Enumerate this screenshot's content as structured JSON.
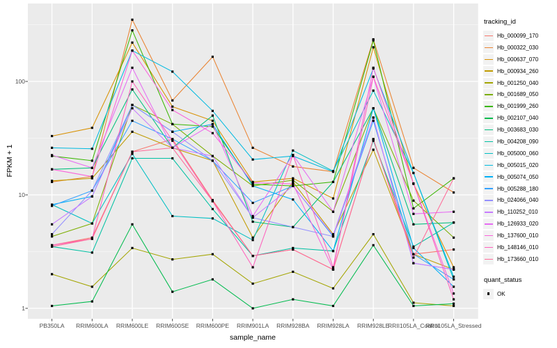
{
  "chart_data": {
    "type": "line",
    "title": "",
    "xlabel": "sample_name",
    "ylabel": "FPKM + 1",
    "y_scale": "log10",
    "y_ticks": [
      "1",
      "10",
      "100"
    ],
    "y_tick_values": [
      1,
      10,
      100
    ],
    "y_minor_values": [
      3.162,
      31.62,
      316.2
    ],
    "ylim": [
      0.8,
      490
    ],
    "grid": true,
    "legend_position": "right",
    "legend_title": "tracking_id",
    "categories": [
      "PB350LA",
      "RRIM600LA",
      "RRIM600LE",
      "RRIM600SE",
      "RRIM600PE",
      "RRIM901LA",
      "RRIM928BA",
      "RRIM928LA",
      "RRIM928LE",
      "RRII105LA_Control",
      "RRII105LA_Stressed"
    ],
    "marker": {
      "shape": "square",
      "color": "#000000"
    },
    "series": [
      {
        "name": "Hb_000099_170",
        "color": "#F8766D",
        "values": [
          3.6,
          4.2,
          24,
          31,
          9.0,
          2.9,
          3.3,
          2.2,
          31,
          3.0,
          3.3
        ]
      },
      {
        "name": "Hb_000322_030",
        "color": "#EA8331",
        "values": [
          13,
          14.5,
          350,
          68,
          165,
          26,
          17.8,
          16,
          235,
          17.3,
          10.5
        ]
      },
      {
        "name": "Hb_000637_070",
        "color": "#D89000",
        "values": [
          33,
          39,
          220,
          60,
          45,
          13,
          14,
          9.3,
          200,
          12.5,
          2.3
        ]
      },
      {
        "name": "Hb_000934_260",
        "color": "#C09B00",
        "values": [
          13.3,
          14,
          36,
          26,
          20,
          4.2,
          13,
          4.5,
          25,
          3.0,
          2.2
        ]
      },
      {
        "name": "Hb_001250_040",
        "color": "#A3A500",
        "values": [
          2.0,
          1.55,
          3.4,
          2.7,
          3.0,
          1.65,
          2.1,
          1.5,
          4.5,
          1.12,
          1.05
        ]
      },
      {
        "name": "Hb_001689_050",
        "color": "#7CAE00",
        "values": [
          4.3,
          5.6,
          62,
          42,
          22,
          12,
          13.5,
          7.1,
          58,
          8.9,
          4.2
        ]
      },
      {
        "name": "Hb_001999_260",
        "color": "#39B600",
        "values": [
          22,
          20,
          282,
          42,
          40,
          12.4,
          12,
          13,
          230,
          7.6,
          14
        ]
      },
      {
        "name": "Hb_002107_040",
        "color": "#00BB4E",
        "values": [
          1.05,
          1.15,
          5.5,
          1.4,
          1.8,
          1.0,
          1.2,
          1.05,
          3.6,
          1.05,
          1.1
        ]
      },
      {
        "name": "Hb_003683_030",
        "color": "#00BF7D",
        "values": [
          16.8,
          17.3,
          85,
          26,
          50,
          5.8,
          5.2,
          13,
          58,
          5.5,
          5.7
        ]
      },
      {
        "name": "Hb_004208_090",
        "color": "#00C1A3",
        "values": [
          3.5,
          3.1,
          21,
          21,
          7.5,
          2.9,
          3.4,
          3.2,
          30,
          3.5,
          5.7
        ]
      },
      {
        "name": "Hb_005000_060",
        "color": "#00BFC4",
        "values": [
          8.2,
          5.6,
          23,
          6.5,
          6.2,
          4.0,
          24.6,
          16.2,
          83,
          15.6,
          1.8
        ]
      },
      {
        "name": "Hb_005015_020",
        "color": "#00BAE0",
        "values": [
          26,
          25.5,
          187,
          122,
          55,
          20.5,
          22,
          16,
          130,
          15.6,
          1.9
        ]
      },
      {
        "name": "Hb_005074_050",
        "color": "#00B0F6",
        "values": [
          8.2,
          9.7,
          62,
          36,
          42,
          12,
          9.1,
          3.2,
          58,
          3.4,
          1.55
        ]
      },
      {
        "name": "Hb_005288_180",
        "color": "#35A2FF",
        "values": [
          8.0,
          10.9,
          45,
          31,
          20,
          8.5,
          12,
          4.3,
          45,
          3.0,
          1.8
        ]
      },
      {
        "name": "Hb_024066_040",
        "color": "#9590FF",
        "values": [
          4.5,
          10.9,
          62,
          36,
          20,
          6.3,
          5.2,
          4.3,
          48,
          2.5,
          2.2
        ]
      },
      {
        "name": "Hb_110252_010",
        "color": "#C77CFF",
        "values": [
          5.5,
          9.7,
          58,
          26,
          22,
          6.3,
          12,
          4.4,
          48,
          2.5,
          2.2
        ]
      },
      {
        "name": "Hb_126933_020",
        "color": "#E76BF3",
        "values": [
          22.4,
          17.3,
          132,
          26,
          42,
          6.5,
          22.5,
          7.1,
          110,
          6.8,
          7.1
        ]
      },
      {
        "name": "Hb_137600_010",
        "color": "#FA62DB",
        "values": [
          16.8,
          14.5,
          187,
          56,
          35,
          12.8,
          12.5,
          2.2,
          132,
          12.6,
          1.35
        ]
      },
      {
        "name": "Hb_148146_010",
        "color": "#FF62BC",
        "values": [
          3.6,
          4.1,
          100,
          30,
          8.8,
          2.3,
          22.5,
          2.3,
          110,
          12.6,
          1.2
        ]
      },
      {
        "name": "Hb_173660_010",
        "color": "#FF6A98",
        "values": [
          3.5,
          4.1,
          24,
          26,
          8.8,
          2.9,
          3.3,
          2.2,
          31,
          2.8,
          14
        ]
      }
    ]
  },
  "quant_legend": {
    "title": "quant_status",
    "items": [
      {
        "label": "OK",
        "marker": "black-square"
      }
    ]
  },
  "colors": {
    "panel_bg": "#EBEBEB",
    "grid_major": "#FFFFFF",
    "grid_minor": "#FFFFFF",
    "tick_text": "#4D4D4D",
    "axis_text": "#000000",
    "legend_key_bg": "#F2F2F2",
    "marker": "#000000"
  }
}
